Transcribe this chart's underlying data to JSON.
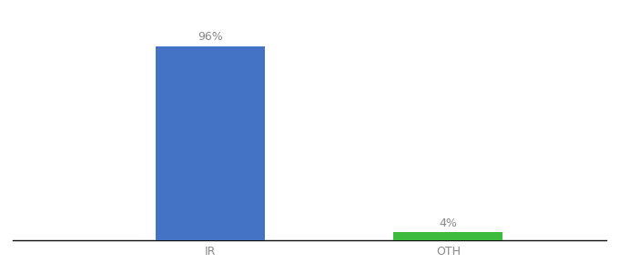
{
  "categories": [
    "IR",
    "OTH"
  ],
  "values": [
    96,
    4
  ],
  "bar_colors": [
    "#4472c4",
    "#3dbb3d"
  ],
  "bar_labels": [
    "96%",
    "4%"
  ],
  "background_color": "#ffffff",
  "ylim": [
    0,
    108
  ],
  "xlim": [
    0,
    3
  ],
  "x_positions": [
    1.0,
    2.2
  ],
  "bar_width": 0.55,
  "label_fontsize": 9,
  "tick_fontsize": 9,
  "label_color": "#888888",
  "tick_color": "#888888",
  "axis_line_color": "#111111"
}
